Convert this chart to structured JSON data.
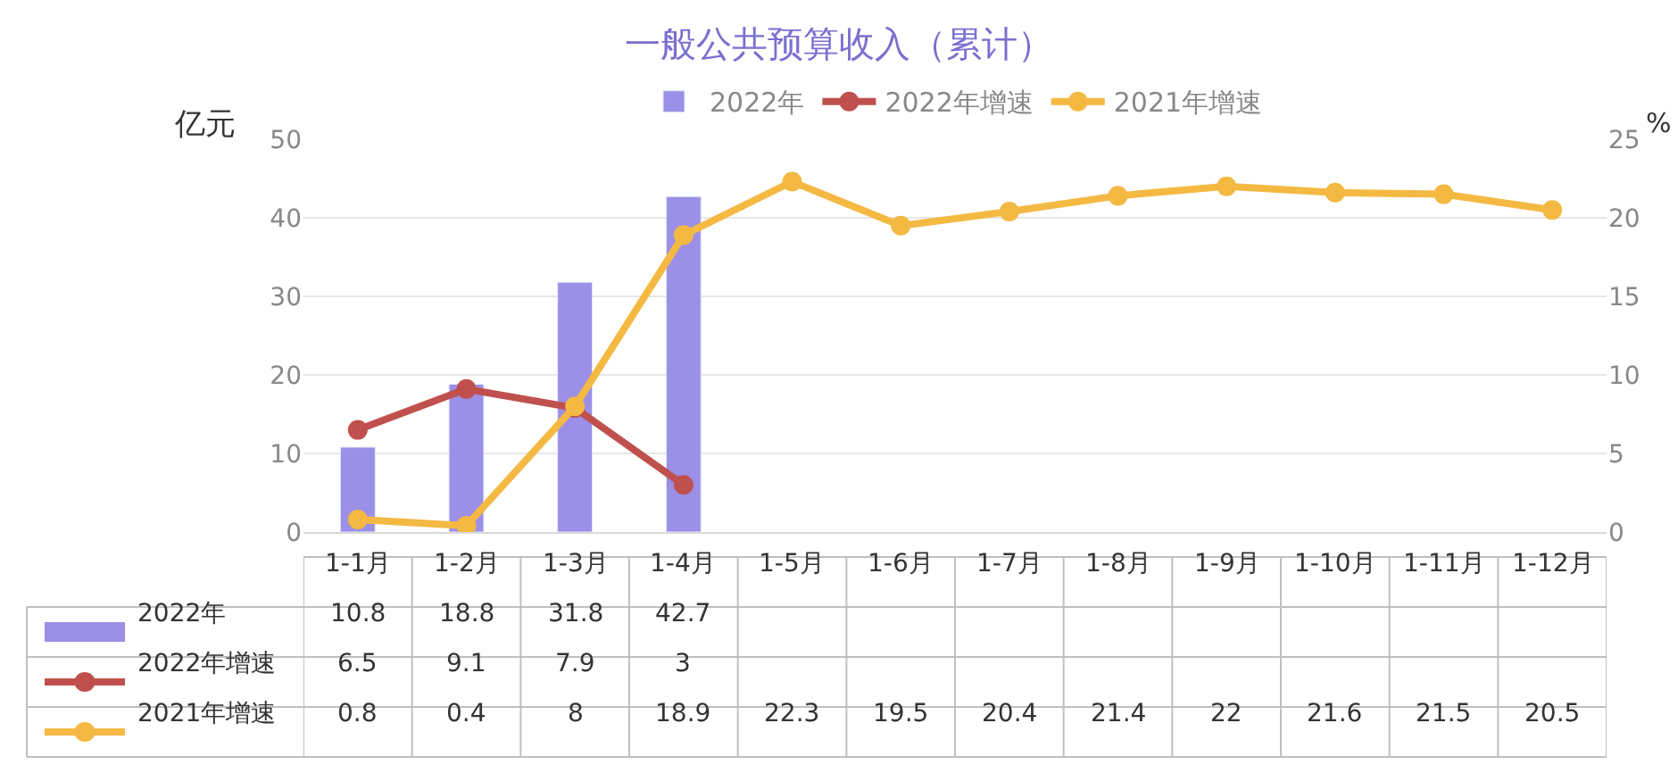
{
  "chart_data": {
    "type": "bar",
    "title": "一般公共预算收入（累计）",
    "ylabel": "亿元",
    "y2label": "%",
    "categories": [
      "1-1月",
      "1-2月",
      "1-3月",
      "1-4月",
      "1-5月",
      "1-6月",
      "1-7月",
      "1-8月",
      "1-9月",
      "1-10月",
      "1-11月",
      "1-12月"
    ],
    "series": [
      {
        "name": "2022年",
        "type": "bar",
        "color": "#9b8fe8",
        "values": [
          10.8,
          18.8,
          31.8,
          42.7,
          null,
          null,
          null,
          null,
          null,
          null,
          null,
          null
        ]
      },
      {
        "name": "2022年增速",
        "type": "line",
        "axis": "y2",
        "color": "#c0504d",
        "values": [
          6.5,
          9.1,
          7.9,
          3,
          null,
          null,
          null,
          null,
          null,
          null,
          null,
          null
        ]
      },
      {
        "name": "2021年增速",
        "type": "line",
        "axis": "y2",
        "color": "#f4b942",
        "values": [
          0.8,
          0.4,
          8,
          18.9,
          22.3,
          19.5,
          20.4,
          21.4,
          22,
          21.6,
          21.5,
          20.5
        ]
      }
    ],
    "ylim": [
      0,
      50
    ],
    "yticks": [
      0,
      10,
      20,
      30,
      40,
      50
    ],
    "y2lim": [
      0,
      25
    ],
    "y2ticks": [
      0,
      5,
      10,
      15,
      20,
      25
    ],
    "grid": "y",
    "legend": "top",
    "marker": "circle",
    "line_style": "solid",
    "data_labels": true
  }
}
